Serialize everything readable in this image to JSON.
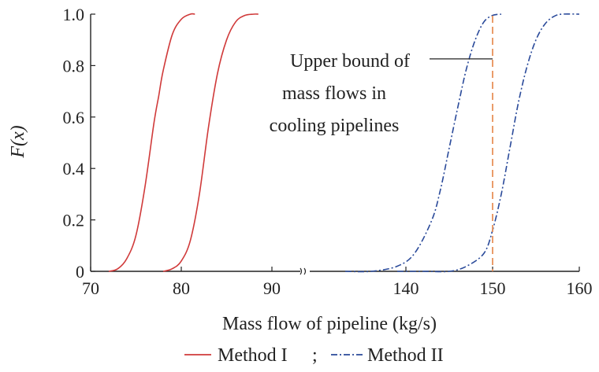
{
  "chart_data": {
    "type": "line",
    "xlabel": "Mass flow of pipeline (kg/s)",
    "ylabel": "F(x)",
    "ylim": [
      0,
      1
    ],
    "x_axis_broken": true,
    "x_segments": [
      {
        "range": [
          70,
          90
        ],
        "ticks": [
          "70",
          "80",
          "90"
        ]
      },
      {
        "range": [
          130,
          160
        ],
        "ticks": [
          "140",
          "150",
          "160"
        ]
      }
    ],
    "y_ticks": [
      "0",
      "0.2",
      "0.4",
      "0.6",
      "0.8",
      "1.0"
    ],
    "series": [
      {
        "name": "Method I",
        "color": "#d03a3a",
        "style": "solid",
        "curves": [
          {
            "x": [
              72.0,
              73.0,
              74.0,
              75.0,
              76.0,
              77.0,
              77.5,
              78.0,
              79.0,
              80.0,
              81.0,
              81.5
            ],
            "y": [
              0.0,
              0.01,
              0.05,
              0.14,
              0.33,
              0.58,
              0.68,
              0.78,
              0.92,
              0.98,
              1.0,
              1.0
            ]
          },
          {
            "x": [
              78.0,
              79.0,
              80.0,
              81.0,
              82.0,
              83.0,
              84.0,
              85.0,
              86.0,
              87.0,
              88.0,
              88.5
            ],
            "y": [
              0.0,
              0.01,
              0.04,
              0.12,
              0.3,
              0.56,
              0.77,
              0.9,
              0.97,
              0.995,
              1.0,
              1.0
            ]
          }
        ]
      },
      {
        "name": "Method II",
        "color": "#2a4a9a",
        "style": "dash-dot",
        "curves": [
          {
            "x": [
              133.0,
              136.0,
              139.0,
              141.0,
              143.0,
              144.0,
              145.0,
              146.0,
              147.0,
              148.0,
              149.0,
              150.0,
              151.0
            ],
            "y": [
              0.0,
              0.0,
              0.02,
              0.07,
              0.2,
              0.32,
              0.48,
              0.64,
              0.79,
              0.9,
              0.97,
              0.995,
              1.0
            ]
          },
          {
            "x": [
              139.0,
              142.0,
              145.0,
              147.0,
              149.0,
              150.0,
              151.0,
              152.0,
              153.0,
              154.0,
              155.0,
              156.0,
              157.0,
              158.0,
              160.0
            ],
            "y": [
              0.0,
              0.0,
              0.0,
              0.02,
              0.07,
              0.16,
              0.3,
              0.48,
              0.66,
              0.8,
              0.9,
              0.96,
              0.99,
              1.0,
              1.0
            ]
          }
        ]
      }
    ],
    "reference_line": {
      "x": 150,
      "color": "#e8915a",
      "style": "dashed"
    },
    "annotation": {
      "lines": [
        "Upper bound of",
        "mass flows in",
        "cooling pipelines"
      ],
      "points_to_x": 150,
      "points_to_y": 0.82
    },
    "legend": {
      "placement": "bottom",
      "separator": ";",
      "items": [
        "Method I",
        "Method II"
      ]
    },
    "grid": false
  }
}
